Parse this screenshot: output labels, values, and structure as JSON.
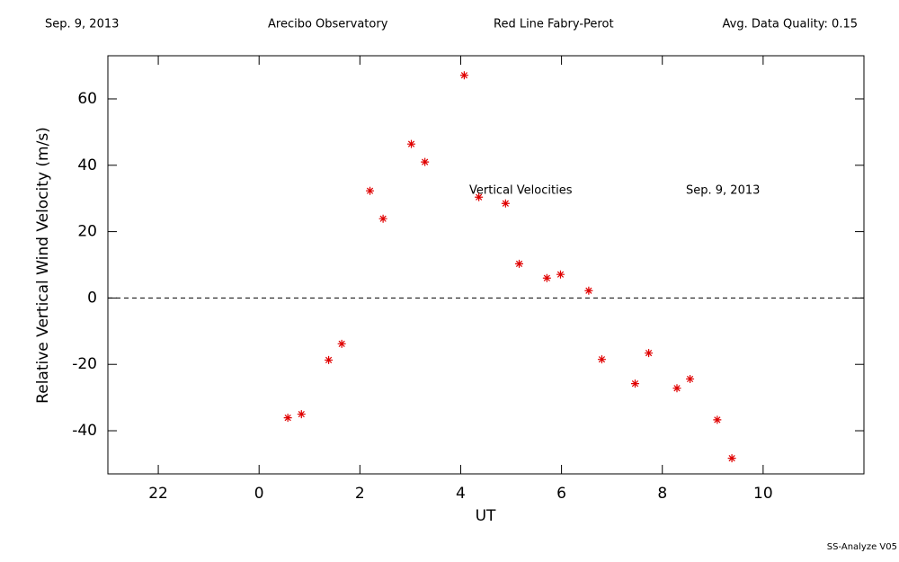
{
  "chart_data": {
    "type": "scatter",
    "header": [
      "Sep. 9, 2013",
      "Arecibo Observatory",
      "Red Line Fabry-Perot",
      "Avg. Data Quality: 0.15"
    ],
    "annotations": [
      "Vertical Velocities",
      "Sep. 9, 2013"
    ],
    "footer": "SS-Analyze V05",
    "x_label": "UT",
    "y_label": "Relative Vertical Wind Velocity (m/s)",
    "xlim": [
      -3,
      12
    ],
    "xticks": [
      {
        "value": -2,
        "label": "22"
      },
      0,
      2,
      4,
      6,
      8,
      10
    ],
    "ylim": [
      -53,
      73
    ],
    "yticks": [
      -40,
      -20,
      0,
      20,
      40,
      60
    ],
    "hline": 0,
    "series": [
      {
        "name": "Vertical Velocities",
        "color": "#e00000",
        "x": [
          0.57,
          0.84,
          1.38,
          1.64,
          2.2,
          2.46,
          3.02,
          3.29,
          4.07,
          4.36,
          4.89,
          5.16,
          5.71,
          5.98,
          6.54,
          6.8,
          7.46,
          7.73,
          8.29,
          8.55,
          9.09,
          9.38
        ],
        "values": [
          -36.1,
          -35.0,
          -18.7,
          -13.8,
          32.3,
          23.9,
          46.4,
          41.0,
          67.1,
          30.4,
          28.5,
          10.3,
          6.0,
          7.1,
          2.2,
          -18.5,
          -25.8,
          -16.6,
          -27.2,
          -24.4,
          -36.7,
          -48.3
        ]
      }
    ]
  }
}
